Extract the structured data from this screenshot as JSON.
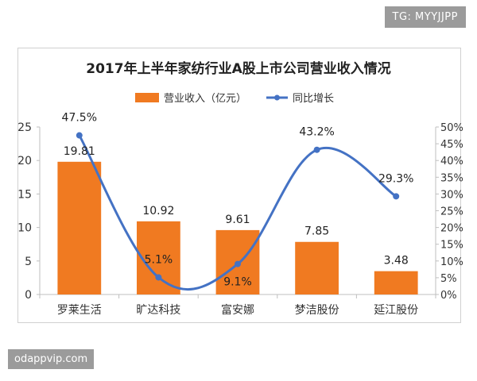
{
  "watermark_tag": "TG: MYYJJPP",
  "site_label": "odappvip.com",
  "chart_data": {
    "type": "bar",
    "title": "2017年上半年家纺行业A股上市公司营业收入情况",
    "categories": [
      "罗莱生活",
      "旷达科技",
      "富安娜",
      "梦洁股份",
      "延江股份"
    ],
    "series": [
      {
        "name": "营业收入（亿元）",
        "type": "bar",
        "axis": "left",
        "color": "#f07a21",
        "values": [
          19.81,
          10.92,
          9.61,
          7.85,
          3.48
        ],
        "labels": [
          "19.81",
          "10.92",
          "9.61",
          "7.85",
          "3.48"
        ]
      },
      {
        "name": "同比增长",
        "type": "line",
        "axis": "right",
        "color": "#4472c4",
        "values": [
          47.5,
          5.1,
          9.1,
          43.2,
          29.3
        ],
        "labels": [
          "47.5%",
          "5.1%",
          "9.1%",
          "43.2%",
          "29.3%"
        ]
      }
    ],
    "y_left": {
      "ylim": [
        0,
        25
      ],
      "ticks": [
        "0",
        "5",
        "10",
        "15",
        "20",
        "25"
      ]
    },
    "y_right": {
      "ylim": [
        0,
        50
      ],
      "ticks": [
        "0%",
        "5%",
        "10%",
        "15%",
        "20%",
        "25%",
        "30%",
        "35%",
        "40%",
        "45%",
        "50%"
      ]
    },
    "legend": "top-center",
    "grid": false
  }
}
